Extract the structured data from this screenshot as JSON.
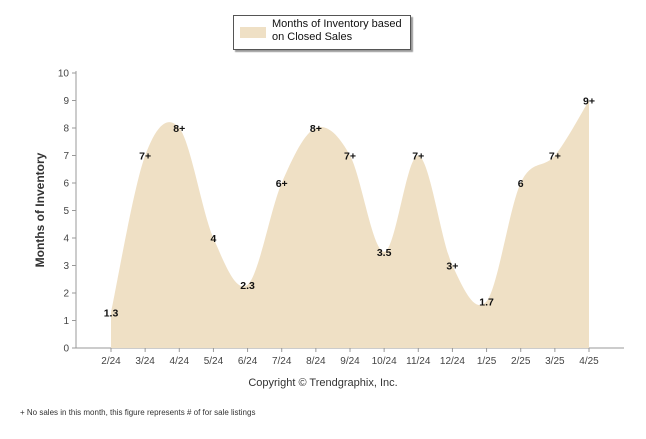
{
  "chart_data": {
    "type": "area",
    "categories": [
      "2/24",
      "3/24",
      "4/24",
      "5/24",
      "6/24",
      "7/24",
      "8/24",
      "9/24",
      "10/24",
      "11/24",
      "12/24",
      "1/25",
      "2/25",
      "3/25",
      "4/25"
    ],
    "series": [
      {
        "name": "Months of Inventory based on Closed Sales",
        "values": [
          1.3,
          7,
          8,
          4,
          2.3,
          6,
          8,
          7,
          3.5,
          7,
          3,
          1.7,
          6,
          7,
          9
        ],
        "labels": [
          "1.3",
          "7+",
          "8+",
          "4",
          "2.3",
          "6+",
          "8+",
          "7+",
          "3.5",
          "7+",
          "3+",
          "1.7",
          "6",
          "7+",
          "9+"
        ],
        "color": "#efe0c5"
      }
    ],
    "ylabel": "Months of Inventory",
    "ylim": [
      0,
      10
    ],
    "yticks": [
      "0",
      "1",
      "2",
      "3",
      "4",
      "5",
      "6",
      "7",
      "8",
      "9",
      "10"
    ],
    "grid": false,
    "legend": "top-center"
  },
  "copyright": "Copyright © Trendgraphix, Inc.",
  "footnote": "No sales in this month, this figure represents # of for sale listings",
  "footnote_marker": "+"
}
